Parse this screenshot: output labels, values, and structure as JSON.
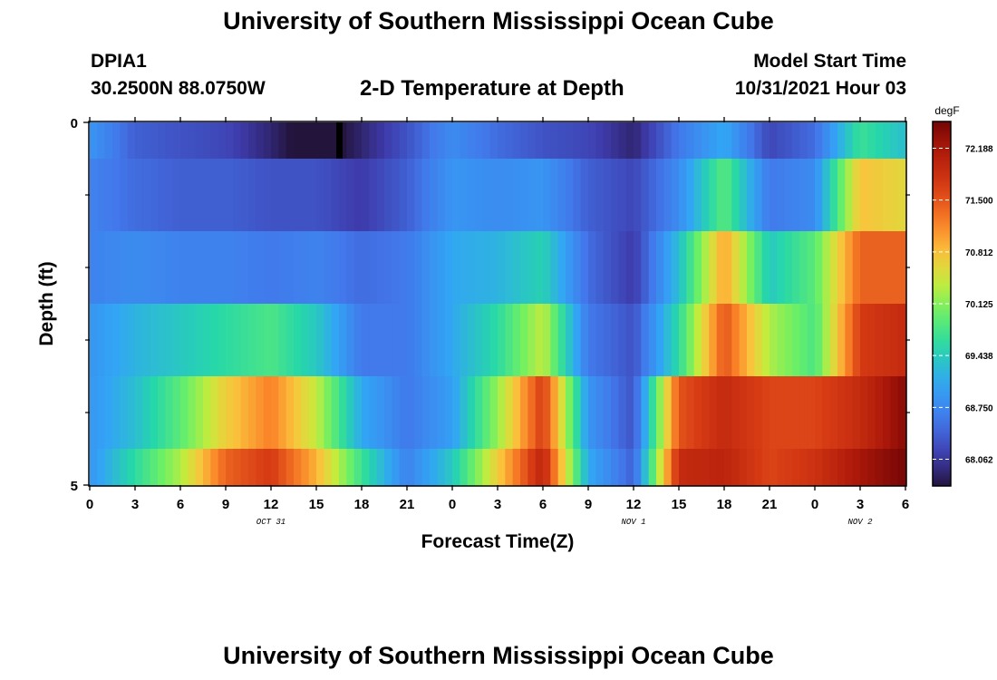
{
  "header": {
    "title": "University of Southern Mississippi Ocean Cube",
    "station": "DPIA1",
    "coords": "30.2500N  88.0750W",
    "subtitle": "2-D Temperature at Depth",
    "model_start_label": "Model Start Time",
    "model_start_value": "10/31/2021 Hour 03",
    "footer_title": "University of Southern Mississippi Ocean Cube"
  },
  "chart_data": {
    "type": "heatmap",
    "xlabel": "Forecast Time(Z)",
    "ylabel": "Depth (ft)",
    "x_tick_labels": [
      "0",
      "3",
      "6",
      "9",
      "12",
      "15",
      "18",
      "21",
      "0",
      "3",
      "6",
      "9",
      "12",
      "15",
      "18",
      "21",
      "0",
      "3",
      "6"
    ],
    "x_tick_hours": [
      0,
      3,
      6,
      9,
      12,
      15,
      18,
      21,
      24,
      27,
      30,
      33,
      36,
      39,
      42,
      45,
      48,
      51,
      54
    ],
    "date_labels": [
      {
        "text": "OCT 31",
        "hour": 12
      },
      {
        "text": "NOV 1",
        "hour": 36
      },
      {
        "text": "NOV 2",
        "hour": 51
      }
    ],
    "xlim": [
      0,
      54
    ],
    "ylim": [
      0,
      5
    ],
    "y_tick_labels": [
      "0",
      "5"
    ],
    "y_tick_values": [
      0,
      5
    ],
    "y_minor_ticks": [
      1,
      2,
      3,
      4
    ],
    "colorbar": {
      "unit": "degF",
      "min": 67.72,
      "max": 72.53,
      "tick_labels": [
        "72.188",
        "71.500",
        "70.812",
        "70.125",
        "69.438",
        "68.750",
        "68.062"
      ],
      "tick_values": [
        72.188,
        71.5,
        70.812,
        70.125,
        69.438,
        68.75,
        68.062
      ]
    },
    "hours": [
      0,
      3,
      6,
      9,
      12,
      15,
      18,
      21,
      24,
      27,
      30,
      33,
      36,
      39,
      42,
      45,
      48,
      51,
      54
    ],
    "depth_rows": [
      {
        "depth_bottom": 0.5,
        "values": [
          68.9,
          68.4,
          68.3,
          68.2,
          67.9,
          67.5,
          67.9,
          68.3,
          68.8,
          68.5,
          68.3,
          68.2,
          67.9,
          68.6,
          69.1,
          68.2,
          68.5,
          69.7,
          69.3
        ]
      },
      {
        "depth_bottom": 1.5,
        "values": [
          68.7,
          68.5,
          68.4,
          68.4,
          68.3,
          68.3,
          68.1,
          68.4,
          68.9,
          68.8,
          68.9,
          68.4,
          68.2,
          68.8,
          69.9,
          68.6,
          68.8,
          70.8,
          70.6
        ]
      },
      {
        "depth_bottom": 2.5,
        "values": [
          68.7,
          68.8,
          68.7,
          68.7,
          68.6,
          68.7,
          68.5,
          68.6,
          69.1,
          69.2,
          69.5,
          68.5,
          68.1,
          69.3,
          71.0,
          69.4,
          69.9,
          71.4,
          71.4
        ]
      },
      {
        "depth_bottom": 3.5,
        "values": [
          68.9,
          69.2,
          69.4,
          69.6,
          69.8,
          69.4,
          68.6,
          68.6,
          69.1,
          69.6,
          70.4,
          68.6,
          68.3,
          69.6,
          71.5,
          70.3,
          69.8,
          71.7,
          71.9
        ]
      },
      {
        "depth_bottom": 4.5,
        "values": [
          68.9,
          69.3,
          69.9,
          70.7,
          71.2,
          70.4,
          69.1,
          68.6,
          69.0,
          70.2,
          71.7,
          68.9,
          68.3,
          71.5,
          71.9,
          71.6,
          71.6,
          71.9,
          72.4
        ]
      },
      {
        "depth_bottom": 5.0,
        "values": [
          68.9,
          69.6,
          70.3,
          71.4,
          71.7,
          70.9,
          69.7,
          68.7,
          69.4,
          70.7,
          72.0,
          69.1,
          68.4,
          71.9,
          72.0,
          71.6,
          71.8,
          72.2,
          72.5
        ]
      }
    ],
    "annotations": [
      "black marker near hour 16.5 at surface"
    ],
    "marker_hour": 16.5
  }
}
